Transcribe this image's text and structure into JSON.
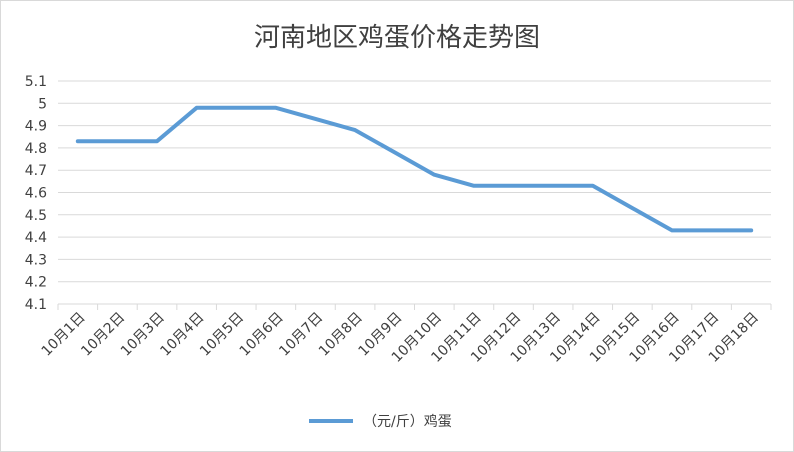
{
  "chart_data": {
    "type": "line",
    "title": "河南地区鸡蛋价格走势图",
    "xlabel": "",
    "ylabel": "",
    "categories": [
      "10月1日",
      "10月2日",
      "10月3日",
      "10月4日",
      "10月5日",
      "10月6日",
      "10月7日",
      "10月8日",
      "10月9日",
      "10月10日",
      "10月11日",
      "10月12日",
      "10月13日",
      "10月14日",
      "10月15日",
      "10月16日",
      "10月17日",
      "10月18日"
    ],
    "series": [
      {
        "name": "（元/斤）鸡蛋",
        "color": "#5b9bd5",
        "values": [
          4.83,
          4.83,
          4.83,
          4.98,
          4.98,
          4.98,
          4.93,
          4.88,
          4.78,
          4.68,
          4.63,
          4.63,
          4.63,
          4.63,
          4.53,
          4.43,
          4.43,
          4.43
        ]
      }
    ],
    "ylim": [
      4.1,
      5.1
    ],
    "yticks": [
      "4.1",
      "4.2",
      "4.3",
      "4.4",
      "4.5",
      "4.6",
      "4.7",
      "4.8",
      "4.9",
      "5",
      "5.1"
    ],
    "grid": true,
    "legend": "bottom",
    "colors": {
      "grid": "#d9d9d9",
      "text": "#404040"
    }
  }
}
